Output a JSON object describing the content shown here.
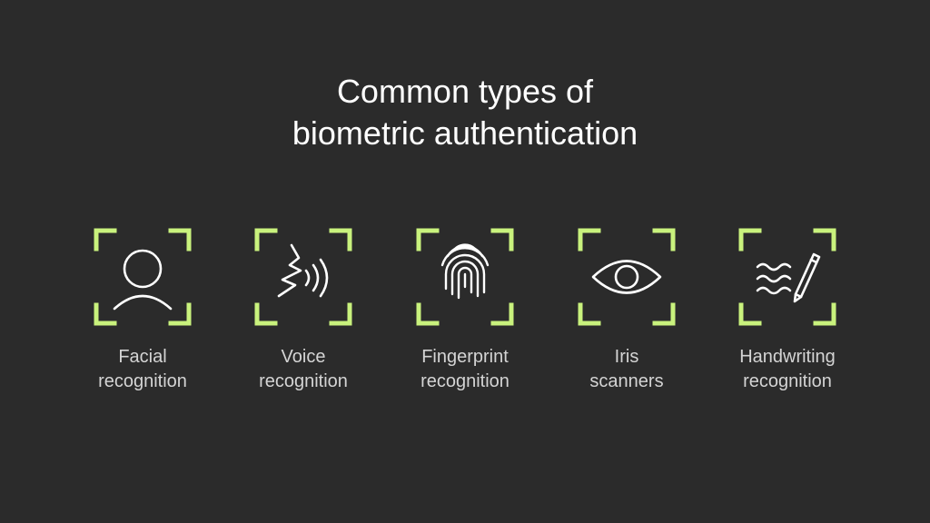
{
  "title": {
    "line1": "Common types of",
    "line2": "biometric authentication"
  },
  "colors": {
    "background": "#2b2b2b",
    "accent": "#c9f27d",
    "text": "#ffffff",
    "label": "#d4d4d4"
  },
  "items": [
    {
      "icon": "face-icon",
      "line1": "Facial",
      "line2": "recognition"
    },
    {
      "icon": "voice-icon",
      "line1": "Voice",
      "line2": "recognition"
    },
    {
      "icon": "fingerprint-icon",
      "line1": "Fingerprint",
      "line2": "recognition"
    },
    {
      "icon": "eye-icon",
      "line1": "Iris",
      "line2": "scanners"
    },
    {
      "icon": "handwriting-icon",
      "line1": "Handwriting",
      "line2": "recognition"
    }
  ]
}
